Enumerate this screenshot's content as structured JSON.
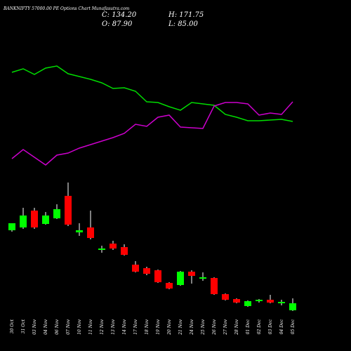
{
  "chart_data": {
    "type": "candlestick",
    "title": "BANKNIFTY 57000.00 PE Options Chart Munafasutra.com",
    "header": [
      "C: 134.20",
      "H: 171.75",
      "O: 87.90",
      "L: 85.00"
    ],
    "categories": [
      "30 Oct",
      "31 Oct",
      "03 Nov",
      "04 Nov",
      "06 Nov",
      "07 Nov",
      "10 Nov",
      "11 Nov",
      "12 Nov",
      "13 Nov",
      "14 Nov",
      "17 Nov",
      "18 Nov",
      "19 Nov",
      "20 Nov",
      "21 Nov",
      "24 Nov",
      "25 Nov",
      "26 Nov",
      "27 Nov",
      "28 Nov",
      "01 Dec",
      "02 Dec",
      "03 Dec",
      "04 Dec",
      "05 Dec"
    ],
    "open": [
      132,
      136,
      160,
      141,
      149,
      181,
      129,
      136,
      104,
      113,
      108,
      83,
      78,
      75,
      57,
      54,
      73,
      63,
      64,
      41,
      34,
      24,
      31,
      33,
      28,
      18
    ],
    "high": [
      142,
      164,
      164,
      158,
      169,
      200,
      142,
      160,
      110,
      117,
      112,
      88,
      80,
      76,
      58,
      74,
      75,
      72,
      65,
      42,
      35,
      32,
      34,
      40,
      33,
      35
    ],
    "low": [
      130,
      134,
      134,
      140,
      148,
      138,
      124,
      119,
      100,
      104,
      96,
      72,
      68,
      57,
      48,
      53,
      56,
      60,
      40,
      32,
      28,
      23,
      29,
      28,
      25,
      17
    ],
    "close": [
      142,
      153,
      136,
      153,
      162,
      140,
      132,
      121,
      106,
      106,
      97,
      73,
      70,
      58,
      49,
      73,
      67,
      65,
      41,
      33,
      29,
      31,
      33,
      29,
      30,
      28
    ],
    "up_color": "#00ff00",
    "down_color": "#ff0000",
    "ylim": [
      10,
      210
    ],
    "lines": [
      {
        "color": "#00dd00",
        "values": [
          197,
          202,
          194,
          203,
          206,
          195,
          191,
          187,
          182,
          174,
          175,
          170,
          155,
          154,
          148,
          143,
          154,
          152,
          150,
          137,
          133,
          128,
          128,
          129,
          130,
          127
        ]
      },
      {
        "color": "#cc00cc",
        "values": [
          74,
          87,
          76,
          65,
          79,
          82,
          89,
          94,
          99,
          104,
          110,
          123,
          120,
          133,
          136,
          119,
          118,
          117,
          149,
          154,
          154,
          152,
          136,
          139,
          137,
          155
        ]
      }
    ],
    "lines_ylim": [
      60,
      220
    ]
  }
}
